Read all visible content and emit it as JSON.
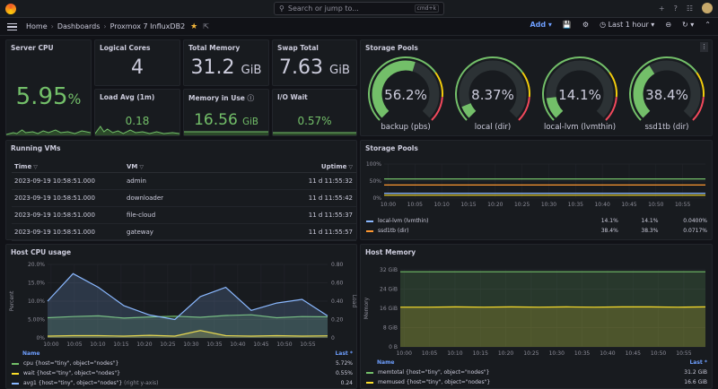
{
  "topbar": {
    "search_placeholder": "Search or jump to...",
    "search_shortcut": "cmd+k",
    "plus": "+",
    "help": "?",
    "news": "☷"
  },
  "nav": {
    "home": "Home",
    "sep": "›",
    "dashboards": "Dashboards",
    "current": "Proxmox 7 InfluxDB2"
  },
  "toolbar": {
    "add": "Add",
    "time_range": "Last 1 hour"
  },
  "stats": {
    "server_cpu": {
      "title": "Server CPU",
      "value": "5.95",
      "unit": "%"
    },
    "logical_cores": {
      "title": "Logical Cores",
      "value": "4"
    },
    "total_memory": {
      "title": "Total Memory",
      "value": "31.2",
      "unit": "GiB"
    },
    "swap_total": {
      "title": "Swap Total",
      "value": "7.63",
      "unit": "GiB"
    },
    "load_avg": {
      "title": "Load Avg (1m)",
      "value": "0.18"
    },
    "memory_in_use": {
      "title": "Memory in Use",
      "value": "16.56",
      "unit": "GiB"
    },
    "io_wait": {
      "title": "I/O Wait",
      "value": "0.57",
      "unit": "%"
    }
  },
  "storage_gauges": {
    "title": "Storage Pools",
    "items": [
      {
        "value": "56.2%",
        "fill": 0.562,
        "label": "backup (pbs)"
      },
      {
        "value": "8.37%",
        "fill": 0.0837,
        "label": "local (dir)"
      },
      {
        "value": "14.1%",
        "fill": 0.141,
        "label": "local-lvm (lvmthin)"
      },
      {
        "value": "38.4%",
        "fill": 0.384,
        "label": "ssd1tb (dir)"
      }
    ]
  },
  "running_vms": {
    "title": "Running VMs",
    "columns": {
      "time": "Time",
      "vm": "VM",
      "uptime": "Uptime"
    },
    "rows": [
      {
        "time": "2023-09-19 10:58:51.000",
        "vm": "admin",
        "uptime": "11 d 11:55:32"
      },
      {
        "time": "2023-09-19 10:58:51.000",
        "vm": "downloader",
        "uptime": "11 d 11:55:42"
      },
      {
        "time": "2023-09-19 10:58:51.000",
        "vm": "file-cloud",
        "uptime": "11 d 11:55:37"
      },
      {
        "time": "2023-09-19 10:58:51.000",
        "vm": "gateway",
        "uptime": "11 d 11:55:57"
      }
    ]
  },
  "storage_ts": {
    "title": "Storage Pools",
    "legend": [
      {
        "name": "local-lvm (lvmthin)",
        "color": "#8ab8ff",
        "v1": "14.1%",
        "v2": "14.1%",
        "v3": "0.0400%"
      },
      {
        "name": "ssd1tb (dir)",
        "color": "#ff9830",
        "v1": "38.4%",
        "v2": "38.3%",
        "v3": "0.0717%"
      }
    ]
  },
  "host_cpu": {
    "title": "Host CPU usage",
    "legend_name": "Name",
    "legend_last": "Last *",
    "legend": [
      {
        "name": "cpu {host=\"tiny\", object=\"nodes\"}",
        "color": "#73bf69",
        "last": "5.72%",
        "suffix": ""
      },
      {
        "name": "wait {host=\"tiny\", object=\"nodes\"}",
        "color": "#fade2a",
        "last": "0.55%",
        "suffix": ""
      },
      {
        "name": "avg1 {host=\"tiny\", object=\"nodes\"}",
        "color": "#8ab8ff",
        "last": "0.24",
        "suffix": "(right y-axis)"
      }
    ]
  },
  "host_memory": {
    "title": "Host Memory",
    "legend_name": "Name",
    "legend_last": "Last *",
    "legend": [
      {
        "name": "memtotal {host=\"tiny\", object=\"nodes\"}",
        "color": "#73bf69",
        "last": "31.2 GiB"
      },
      {
        "name": "memused {host=\"tiny\", object=\"nodes\"}",
        "color": "#fade2a",
        "last": "16.6 GiB"
      }
    ]
  },
  "chart_data": [
    {
      "type": "line",
      "title": "Storage Pools",
      "x": [
        "10:00",
        "10:05",
        "10:10",
        "10:15",
        "10:20",
        "10:25",
        "10:30",
        "10:35",
        "10:40",
        "10:45",
        "10:50",
        "10:55"
      ],
      "yticks": [
        "100%",
        "50%",
        "0%"
      ],
      "ylim": [
        0,
        100
      ],
      "series": [
        {
          "name": "backup (pbs)",
          "color": "#73bf69",
          "values": [
            56.2,
            56.2,
            56.2,
            56.2,
            56.2,
            56.2,
            56.2,
            56.2,
            56.2,
            56.2,
            56.2,
            56.2
          ]
        },
        {
          "name": "local (dir)",
          "color": "#fade2a",
          "values": [
            8.37,
            8.37,
            8.37,
            8.37,
            8.37,
            8.37,
            8.37,
            8.37,
            8.37,
            8.37,
            8.37,
            8.37
          ]
        },
        {
          "name": "local-lvm (lvmthin)",
          "color": "#8ab8ff",
          "values": [
            14.1,
            14.1,
            14.1,
            14.1,
            14.1,
            14.1,
            14.1,
            14.1,
            14.1,
            14.1,
            14.1,
            14.1
          ]
        },
        {
          "name": "ssd1tb (dir)",
          "color": "#ff9830",
          "values": [
            38.4,
            38.4,
            38.4,
            38.4,
            38.4,
            38.4,
            38.4,
            38.4,
            38.4,
            38.4,
            38.4,
            38.4
          ]
        }
      ]
    },
    {
      "type": "line",
      "title": "Host CPU usage",
      "ylabel": "Percent",
      "y2label": "Load",
      "x": [
        "10:00",
        "10:05",
        "10:10",
        "10:15",
        "10:20",
        "10:25",
        "10:30",
        "10:35",
        "10:40",
        "10:45",
        "10:50",
        "10:55"
      ],
      "yticks": [
        "20.0%",
        "15.0%",
        "10.0%",
        "5.00%",
        "0%"
      ],
      "y2ticks": [
        "0.80",
        "0.60",
        "0.40",
        "0.20",
        "0"
      ],
      "ylim": [
        0,
        20
      ],
      "y2lim": [
        0,
        0.8
      ],
      "series": [
        {
          "name": "cpu",
          "axis": "left",
          "color": "#73bf69",
          "values": [
            5.5,
            5.8,
            6.0,
            5.4,
            5.7,
            5.9,
            5.6,
            6.1,
            6.3,
            5.5,
            5.8,
            5.72
          ]
        },
        {
          "name": "wait",
          "axis": "left",
          "color": "#fade2a",
          "values": [
            0.5,
            0.6,
            0.6,
            0.5,
            0.7,
            0.5,
            2.0,
            0.6,
            0.5,
            0.6,
            0.5,
            0.55
          ]
        },
        {
          "name": "avg1",
          "axis": "right",
          "color": "#8ab8ff",
          "values": [
            0.4,
            0.7,
            0.55,
            0.35,
            0.25,
            0.2,
            0.45,
            0.55,
            0.3,
            0.38,
            0.42,
            0.24
          ]
        }
      ]
    },
    {
      "type": "line",
      "title": "Host Memory",
      "ylabel": "Memory",
      "x": [
        "10:00",
        "10:05",
        "10:10",
        "10:15",
        "10:20",
        "10:25",
        "10:30",
        "10:35",
        "10:40",
        "10:45",
        "10:50",
        "10:55"
      ],
      "yticks": [
        "32 GiB",
        "24 GiB",
        "16 GiB",
        "8 GiB",
        "0 B"
      ],
      "ylim": [
        0,
        32
      ],
      "series": [
        {
          "name": "memtotal",
          "color": "#73bf69",
          "values": [
            31.2,
            31.2,
            31.2,
            31.2,
            31.2,
            31.2,
            31.2,
            31.2,
            31.2,
            31.2,
            31.2,
            31.2
          ]
        },
        {
          "name": "memused",
          "color": "#fade2a",
          "values": [
            16.5,
            16.5,
            16.6,
            16.5,
            16.6,
            16.5,
            16.6,
            16.5,
            16.6,
            16.6,
            16.5,
            16.6
          ]
        }
      ]
    }
  ]
}
